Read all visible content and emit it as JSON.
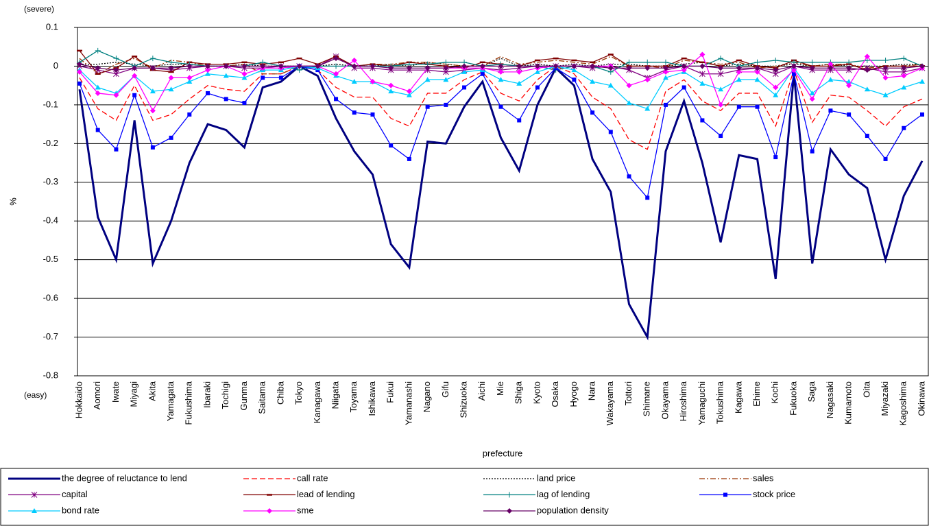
{
  "chart_data": {
    "type": "line",
    "ylabel": "%",
    "xlabel": "prefecture",
    "top_note": "(severe)",
    "bottom_note": "(easy)",
    "ylim": [
      -0.8,
      0.1
    ],
    "yticks": [
      0.1,
      0,
      -0.1,
      -0.2,
      -0.3,
      -0.4,
      -0.5,
      -0.6,
      -0.7,
      -0.8
    ],
    "grid": true,
    "legend": "bottom",
    "categories": [
      "Hokkaido",
      "Aomori",
      "Iwate",
      "Miyagi",
      "Akita",
      "Yamagata",
      "Fukushima",
      "Ibaraki",
      "Tochigi",
      "Gunma",
      "Saitama",
      "Chiba",
      "Tokyo",
      "Kanagawa",
      "Niigata",
      "Toyama",
      "Ishikawa",
      "Fukui",
      "Yamanashi",
      "Nagano",
      "Gifu",
      "Shizuoka",
      "Aichi",
      "Mie",
      "Shiga",
      "Kyoto",
      "Osaka",
      "Hyogo",
      "Nara",
      "Wakayama",
      "Tottori",
      "Shimane",
      "Okayama",
      "Hiroshima",
      "Yamaguchi",
      "Tokushima",
      "Kagawa",
      "Ehime",
      "Kochi",
      "Fukuoka",
      "Saga",
      "Nagasaki",
      "Kumamoto",
      "Oita",
      "Miyazaki",
      "Kagoshima",
      "Okinawa"
    ],
    "series": [
      {
        "name": "the degree of reluctance to lend",
        "color": "#000080",
        "dash": "solid",
        "marker": "none",
        "values": [
          -0.06,
          -0.39,
          -0.5,
          -0.14,
          -0.51,
          -0.4,
          -0.25,
          -0.15,
          -0.165,
          -0.21,
          -0.055,
          -0.04,
          0,
          -0.025,
          -0.135,
          -0.22,
          -0.28,
          -0.46,
          -0.52,
          -0.195,
          -0.2,
          -0.105,
          -0.04,
          -0.185,
          -0.27,
          -0.1,
          -0.005,
          -0.05,
          -0.24,
          -0.325,
          -0.615,
          -0.7,
          -0.22,
          -0.09,
          -0.25,
          -0.455,
          -0.23,
          -0.24,
          -0.55,
          -0.02,
          -0.51,
          -0.215,
          -0.28,
          -0.315,
          -0.5,
          -0.335,
          -0.245
        ]
      },
      {
        "name": "call rate",
        "color": "#ff0000",
        "dash": "dashed",
        "marker": "none",
        "values": [
          -0.03,
          -0.11,
          -0.14,
          -0.05,
          -0.14,
          -0.125,
          -0.085,
          -0.05,
          -0.06,
          -0.065,
          -0.02,
          -0.02,
          0,
          -0.01,
          -0.055,
          -0.08,
          -0.08,
          -0.135,
          -0.155,
          -0.07,
          -0.07,
          -0.035,
          -0.015,
          -0.07,
          -0.09,
          -0.035,
          0,
          -0.02,
          -0.08,
          -0.11,
          -0.19,
          -0.215,
          -0.065,
          -0.035,
          -0.09,
          -0.115,
          -0.07,
          -0.07,
          -0.155,
          -0.01,
          -0.145,
          -0.075,
          -0.08,
          -0.115,
          -0.155,
          -0.105,
          -0.085
        ]
      },
      {
        "name": "land price",
        "color": "#000000",
        "dash": "dotted",
        "marker": "none",
        "values": [
          0.005,
          0.005,
          0.01,
          0.005,
          0,
          0.005,
          0.005,
          0,
          0,
          0.005,
          0,
          0,
          0,
          0,
          0.005,
          0,
          0,
          0.005,
          0,
          0.01,
          0.005,
          0,
          0,
          0.02,
          0,
          0.005,
          0,
          0.005,
          0,
          0.005,
          0.005,
          0,
          0,
          0.005,
          0.01,
          0,
          0.005,
          0,
          0,
          0.005,
          0,
          0.005,
          0,
          0,
          0,
          0.005,
          0.005
        ]
      },
      {
        "name": "sales",
        "color": "#993300",
        "dash": "dashdot",
        "marker": "none",
        "values": [
          0.02,
          -0.02,
          0.005,
          0.02,
          -0.005,
          0.015,
          0.01,
          0,
          0,
          0.005,
          -0.02,
          -0.02,
          0,
          0,
          0.02,
          0,
          0.005,
          0.005,
          0.01,
          0.01,
          0.005,
          0,
          0,
          0.025,
          0.005,
          0.01,
          0.015,
          0.01,
          0.005,
          0.025,
          0,
          0,
          -0.005,
          0.015,
          0.01,
          0.005,
          0.01,
          -0.005,
          0,
          0.01,
          0,
          0.005,
          0.005,
          -0.005,
          0,
          0,
          0.005
        ]
      },
      {
        "name": "capital",
        "color": "#800080",
        "dash": "solid",
        "marker": "asterisk",
        "values": [
          0,
          -0.01,
          -0.02,
          -0.005,
          -0.005,
          -0.01,
          -0.005,
          0,
          0,
          -0.005,
          -0.005,
          0,
          0,
          0,
          0.025,
          -0.005,
          -0.005,
          -0.01,
          -0.01,
          -0.01,
          -0.015,
          -0.01,
          -0.005,
          -0.01,
          -0.005,
          0,
          0,
          0,
          -0.005,
          0,
          -0.01,
          -0.03,
          -0.01,
          0,
          -0.02,
          -0.02,
          -0.01,
          -0.005,
          -0.02,
          0,
          -0.01,
          -0.01,
          -0.01,
          -0.005,
          -0.015,
          -0.015,
          -0.005
        ]
      },
      {
        "name": "lead of lending",
        "color": "#800000",
        "dash": "solid",
        "marker": "dash",
        "values": [
          0.04,
          -0.02,
          -0.005,
          0.025,
          -0.01,
          -0.015,
          0.01,
          0.005,
          0.005,
          0.01,
          0.005,
          0.01,
          0.02,
          0.005,
          0.025,
          0,
          0.005,
          0,
          0.01,
          0.005,
          0,
          -0.005,
          0.01,
          0.005,
          0,
          0.015,
          0.02,
          0.015,
          0.01,
          0.03,
          0,
          0,
          0,
          0.02,
          0.01,
          0,
          0.015,
          0,
          -0.005,
          0.015,
          0,
          0,
          0.005,
          -0.01,
          0,
          0,
          0
        ]
      },
      {
        "name": "lag of lending",
        "color": "#008080",
        "dash": "solid",
        "marker": "plus",
        "values": [
          0.01,
          0.04,
          0.02,
          0,
          0.02,
          0.01,
          0.005,
          0,
          0,
          0,
          0.01,
          0,
          -0.01,
          0,
          0,
          0,
          0,
          0,
          0.005,
          0.005,
          0.01,
          0.01,
          0,
          0.005,
          0,
          0,
          -0.01,
          0,
          0,
          -0.015,
          0.01,
          0.01,
          0.01,
          0,
          0,
          0.02,
          0,
          0.01,
          0.015,
          0.01,
          0.01,
          0.01,
          0.01,
          0.015,
          0.015,
          0.02,
          0
        ]
      },
      {
        "name": "stock price",
        "color": "#0000ff",
        "dash": "solid",
        "marker": "square",
        "values": [
          -0.045,
          -0.165,
          -0.215,
          -0.075,
          -0.21,
          -0.185,
          -0.125,
          -0.07,
          -0.085,
          -0.095,
          -0.03,
          -0.03,
          0,
          -0.01,
          -0.085,
          -0.12,
          -0.125,
          -0.205,
          -0.24,
          -0.105,
          -0.1,
          -0.055,
          -0.02,
          -0.105,
          -0.14,
          -0.055,
          -0.005,
          -0.035,
          -0.12,
          -0.17,
          -0.285,
          -0.34,
          -0.1,
          -0.055,
          -0.14,
          -0.18,
          -0.105,
          -0.105,
          -0.235,
          -0.02,
          -0.22,
          -0.115,
          -0.125,
          -0.18,
          -0.24,
          -0.16,
          -0.125
        ]
      },
      {
        "name": "bond rate",
        "color": "#00ccff",
        "dash": "solid",
        "marker": "triangle",
        "values": [
          -0.01,
          -0.055,
          -0.07,
          -0.025,
          -0.065,
          -0.06,
          -0.04,
          -0.02,
          -0.025,
          -0.03,
          -0.01,
          -0.01,
          0,
          -0.005,
          -0.025,
          -0.04,
          -0.04,
          -0.065,
          -0.075,
          -0.035,
          -0.035,
          -0.015,
          -0.01,
          -0.035,
          -0.045,
          -0.015,
          0,
          -0.01,
          -0.04,
          -0.05,
          -0.095,
          -0.11,
          -0.03,
          -0.015,
          -0.045,
          -0.06,
          -0.035,
          -0.035,
          -0.075,
          -0.005,
          -0.07,
          -0.035,
          -0.04,
          -0.06,
          -0.075,
          -0.055,
          -0.04
        ]
      },
      {
        "name": "sme",
        "color": "#ff00ff",
        "dash": "solid",
        "marker": "diamond",
        "values": [
          -0.015,
          -0.07,
          -0.075,
          -0.025,
          -0.115,
          -0.03,
          -0.03,
          -0.01,
          0,
          -0.02,
          -0.005,
          -0.005,
          0,
          0,
          -0.02,
          0.015,
          -0.04,
          -0.05,
          -0.065,
          -0.005,
          -0.005,
          -0.005,
          -0.005,
          -0.015,
          -0.015,
          -0.005,
          0,
          0,
          0,
          0,
          -0.05,
          -0.035,
          -0.015,
          -0.01,
          0.03,
          -0.1,
          -0.015,
          -0.015,
          -0.055,
          -0.01,
          -0.085,
          0.005,
          -0.05,
          0.025,
          -0.03,
          -0.025,
          -0.005
        ]
      },
      {
        "name": "population density",
        "color": "#660066",
        "dash": "solid",
        "marker": "diamond",
        "values": [
          0.005,
          -0.005,
          -0.01,
          -0.005,
          -0.005,
          -0.005,
          0,
          0,
          0,
          0,
          0,
          0,
          0,
          0,
          0.02,
          0,
          0,
          -0.005,
          -0.005,
          -0.005,
          -0.005,
          0,
          0,
          0,
          0,
          0,
          0,
          0,
          0,
          -0.005,
          -0.005,
          -0.005,
          -0.005,
          0,
          0,
          -0.005,
          -0.005,
          -0.005,
          -0.01,
          0,
          -0.005,
          -0.005,
          -0.005,
          -0.01,
          -0.005,
          -0.005,
          0
        ]
      }
    ]
  }
}
